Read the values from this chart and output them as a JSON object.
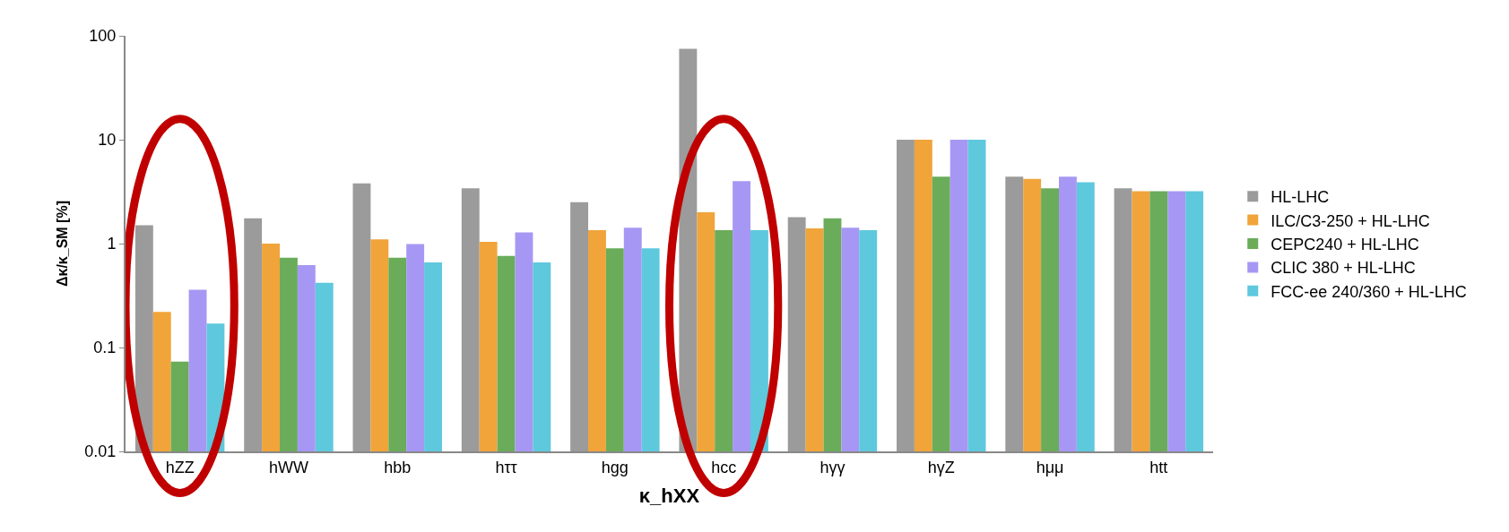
{
  "chart_data": {
    "type": "bar",
    "xlabel": "κ_hXX",
    "ylabel": "Δκ/κ_SM [%]",
    "categories": [
      "hZZ",
      "hWW",
      "hbb",
      "hττ",
      "hgg",
      "hcc",
      "hγγ",
      "hγZ",
      "hμμ",
      "htt"
    ],
    "series": [
      {
        "name": "HL-LHC",
        "color": "#9b9b9b",
        "values": [
          1.5,
          1.75,
          3.8,
          3.4,
          2.5,
          75,
          1.8,
          10,
          4.4,
          3.4
        ]
      },
      {
        "name": "ILC/C3-250 + HL-LHC",
        "color": "#f0a43a",
        "values": [
          0.22,
          1.0,
          1.1,
          1.04,
          1.35,
          2.0,
          1.4,
          10,
          4.2,
          3.2
        ]
      },
      {
        "name": "CEPC240 + HL-LHC",
        "color": "#6aac5a",
        "values": [
          0.073,
          0.73,
          0.73,
          0.76,
          0.9,
          1.35,
          1.75,
          4.4,
          3.4,
          3.2
        ]
      },
      {
        "name": "CLIC 380 + HL-LHC",
        "color": "#a797f4",
        "values": [
          0.36,
          0.62,
          0.99,
          1.28,
          1.42,
          4.0,
          1.42,
          10,
          4.4,
          3.2
        ]
      },
      {
        "name": "FCC-ee 240/360 + HL-LHC",
        "color": "#5ec8dd",
        "values": [
          0.17,
          0.42,
          0.66,
          0.66,
          0.9,
          1.35,
          1.35,
          10,
          3.9,
          3.2
        ]
      }
    ],
    "log": true,
    "ylim": [
      0.01,
      100
    ],
    "yticks": [
      0.01,
      0.1,
      1,
      10,
      100
    ],
    "legend": "right"
  }
}
